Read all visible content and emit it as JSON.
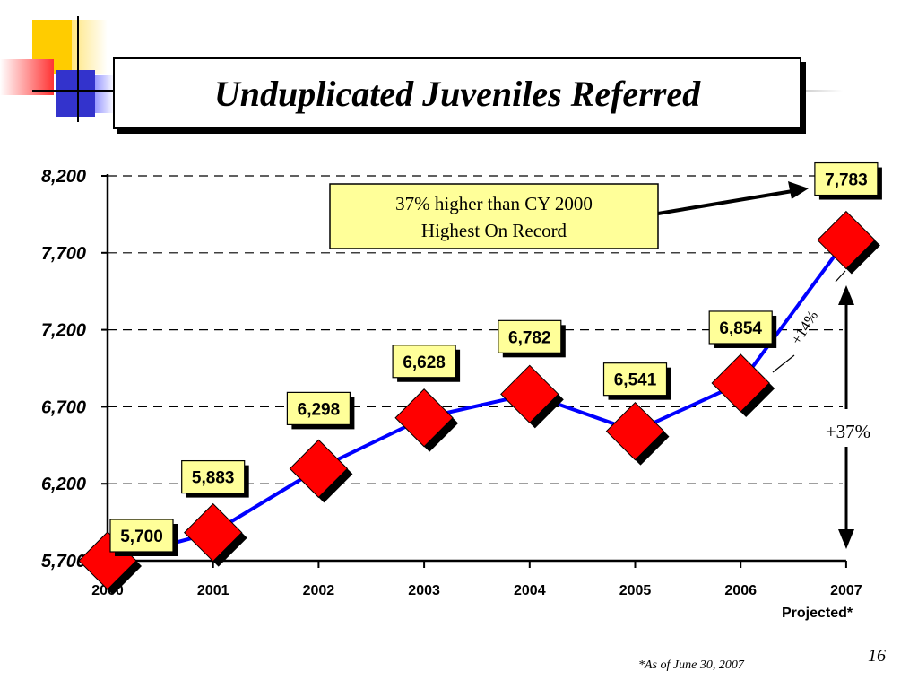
{
  "slide": {
    "title": "Unduplicated Juveniles Referred",
    "footnote": "*As of June 30, 2007",
    "page_number": "16",
    "projected_label": "Projected*"
  },
  "chart_data": {
    "type": "line",
    "title": "Unduplicated Juveniles Referred",
    "x": [
      "2000",
      "2001",
      "2002",
      "2003",
      "2004",
      "2005",
      "2006",
      "2007"
    ],
    "series": [
      {
        "values": [
          5700,
          5883,
          6298,
          6628,
          6782,
          6541,
          6854,
          7783
        ]
      }
    ],
    "data_labels": [
      "5,700",
      "5,883",
      "6,298",
      "6,628",
      "6,782",
      "6,541",
      "6,854",
      "7,783"
    ],
    "y_ticks": [
      "5,700",
      "6,200",
      "6,700",
      "7,200",
      "7,700",
      "8,200"
    ],
    "y_tick_values": [
      5700,
      6200,
      6700,
      7200,
      7700,
      8200
    ],
    "ylim": [
      5700,
      8200
    ],
    "grid": true,
    "line_color": "#0000ff",
    "marker_color": "#ff0000",
    "label_box_color": "#ffff99",
    "annotations": {
      "callout_line1": "37% higher than CY 2000",
      "callout_line2": "Highest On Record",
      "pct_14": "+14%",
      "pct_37": "+37%"
    }
  }
}
